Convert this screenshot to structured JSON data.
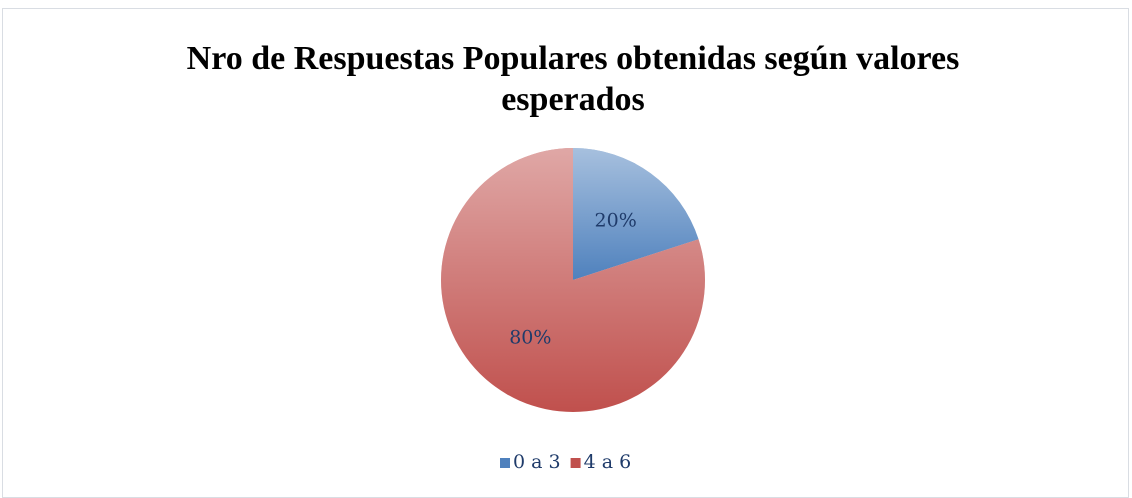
{
  "chart_data": {
    "type": "pie",
    "title": "Nro de Respuestas Populares obtenidas según valores esperados",
    "categories": [
      "0 a 3",
      "4 a 6"
    ],
    "values": [
      20,
      80
    ],
    "value_labels": [
      "20%",
      "80%"
    ],
    "colors": [
      "#4f81bd",
      "#c0504d"
    ],
    "legend": "bottom"
  }
}
